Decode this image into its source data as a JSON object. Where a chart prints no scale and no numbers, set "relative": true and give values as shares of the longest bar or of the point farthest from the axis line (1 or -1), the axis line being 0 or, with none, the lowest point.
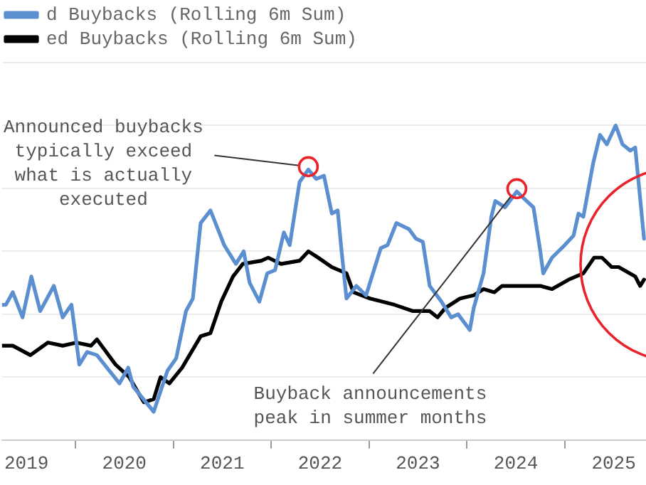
{
  "chart_data": {
    "type": "line",
    "relative": true,
    "legend": "top left",
    "grid": "y",
    "tick_labels": "x",
    "marker": "none",
    "line_style": "solid",
    "xlim": [
      2019.25,
      2025.83
    ],
    "xticks": [
      {
        "value": 2019.5,
        "label": "2019"
      },
      {
        "value": 2020,
        "label": null
      },
      {
        "value": 2020.5,
        "label": "2020"
      },
      {
        "value": 2021,
        "label": null
      },
      {
        "value": 2021.5,
        "label": "2021"
      },
      {
        "value": 2022,
        "label": null
      },
      {
        "value": 2022.5,
        "label": "2022"
      },
      {
        "value": 2023,
        "label": null
      },
      {
        "value": 2023.5,
        "label": "2023"
      },
      {
        "value": 2024,
        "label": null
      },
      {
        "value": 2024.5,
        "label": "2024"
      },
      {
        "value": 2025,
        "label": null
      },
      {
        "value": 2025.5,
        "label": "2025"
      }
    ],
    "series": [
      {
        "name": "d Buybacks (Rolling 6m Sum)",
        "color": "#5b8fd0",
        "x": [
          2019.25,
          2019.29,
          2019.36,
          2019.46,
          2019.55,
          2019.64,
          2019.78,
          2019.87,
          2019.96,
          2020.04,
          2020.12,
          2020.22,
          2020.45,
          2020.54,
          2020.59,
          2020.8,
          2020.94,
          2021.03,
          2021.13,
          2021.2,
          2021.28,
          2021.38,
          2021.52,
          2021.64,
          2021.72,
          2021.78,
          2021.88,
          2021.96,
          2022.04,
          2022.13,
          2022.19,
          2022.29,
          2022.38,
          2022.46,
          2022.54,
          2022.62,
          2022.68,
          2022.72,
          2022.77,
          2022.87,
          2022.97,
          2023.12,
          2023.19,
          2023.28,
          2023.41,
          2023.48,
          2023.55,
          2023.62,
          2023.74,
          2023.84,
          2023.91,
          2024.03,
          2024.07,
          2024.17,
          2024.25,
          2024.29,
          2024.39,
          2024.51,
          2024.61,
          2024.68,
          2024.75,
          2024.78,
          2024.87,
          2025.0,
          2025.09,
          2025.14,
          2025.19,
          2025.29,
          2025.36,
          2025.43,
          2025.52,
          2025.59,
          2025.67,
          2025.72,
          2025.81
        ],
        "values": [
          0.43,
          0.43,
          0.47,
          0.39,
          0.52,
          0.41,
          0.49,
          0.39,
          0.43,
          0.24,
          0.28,
          0.27,
          0.18,
          0.23,
          0.17,
          0.09,
          0.22,
          0.26,
          0.41,
          0.45,
          0.69,
          0.73,
          0.62,
          0.56,
          0.6,
          0.5,
          0.44,
          0.53,
          0.54,
          0.66,
          0.62,
          0.82,
          0.86,
          0.83,
          0.84,
          0.72,
          0.73,
          0.6,
          0.45,
          0.49,
          0.46,
          0.61,
          0.62,
          0.69,
          0.67,
          0.64,
          0.63,
          0.49,
          0.44,
          0.39,
          0.4,
          0.35,
          0.42,
          0.53,
          0.71,
          0.76,
          0.74,
          0.79,
          0.76,
          0.74,
          0.6,
          0.53,
          0.58,
          0.62,
          0.65,
          0.72,
          0.71,
          0.88,
          0.97,
          0.94,
          1,
          0.94,
          0.92,
          0.93,
          0.64
        ]
      },
      {
        "name": "ed Buybacks (Rolling 6m Sum)",
        "color": "#000000",
        "x": [
          2019.25,
          2019.36,
          2019.54,
          2019.72,
          2019.87,
          2020.01,
          2020.16,
          2020.22,
          2020.41,
          2020.55,
          2020.7,
          2020.8,
          2020.87,
          2020.96,
          2021.09,
          2021.28,
          2021.38,
          2021.49,
          2021.61,
          2021.71,
          2021.9,
          2021.97,
          2022.1,
          2022.29,
          2022.38,
          2022.48,
          2022.62,
          2022.77,
          2022.84,
          2023.01,
          2023.26,
          2023.45,
          2023.62,
          2023.7,
          2023.78,
          2023.93,
          2024.07,
          2024.17,
          2024.28,
          2024.36,
          2024.57,
          2024.75,
          2024.87,
          2025.04,
          2025.19,
          2025.3,
          2025.38,
          2025.48,
          2025.55,
          2025.72,
          2025.77,
          2025.81
        ],
        "values": [
          0.3,
          0.3,
          0.27,
          0.31,
          0.3,
          0.31,
          0.3,
          0.32,
          0.24,
          0.2,
          0.12,
          0.13,
          0.2,
          0.18,
          0.23,
          0.33,
          0.34,
          0.44,
          0.52,
          0.56,
          0.57,
          0.58,
          0.56,
          0.57,
          0.6,
          0.58,
          0.55,
          0.53,
          0.47,
          0.45,
          0.43,
          0.41,
          0.41,
          0.39,
          0.42,
          0.45,
          0.46,
          0.48,
          0.47,
          0.49,
          0.49,
          0.49,
          0.48,
          0.51,
          0.53,
          0.58,
          0.58,
          0.55,
          0.55,
          0.52,
          0.49,
          0.51
        ]
      }
    ],
    "annotations": [
      {
        "text": "Announced buybacks typically exceed what is actually executed",
        "x": 2022.38,
        "y": 0.86
      },
      {
        "text": "Buyback announcements peak in summer months",
        "x": 2024.51,
        "y": 0.79
      }
    ]
  }
}
